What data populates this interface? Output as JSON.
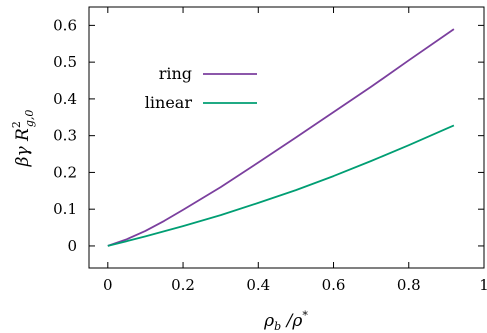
{
  "chart_data": {
    "type": "line",
    "xlabel": "ρ_b / ρ*",
    "ylabel": "β γ R²_{g,0}",
    "xlim": [
      -0.05,
      1.0
    ],
    "ylim": [
      -0.06,
      0.65
    ],
    "xticks": [
      0,
      0.2,
      0.4,
      0.6,
      0.8,
      1
    ],
    "xtick_labels": [
      "0",
      "0.2",
      "0.4",
      "0.6",
      "0.8",
      "1"
    ],
    "yticks": [
      0,
      0.1,
      0.2,
      0.3,
      0.4,
      0.5,
      0.6
    ],
    "ytick_labels": [
      "0",
      "0.1",
      "0.2",
      "0.3",
      "0.4",
      "0.5",
      "0.6"
    ],
    "grid": false,
    "legend_position": "top-left",
    "series": [
      {
        "name": "ring",
        "color": "#7b3f9e",
        "x": [
          0,
          0.05,
          0.1,
          0.15,
          0.2,
          0.3,
          0.4,
          0.5,
          0.6,
          0.7,
          0.8,
          0.92
        ],
        "y": [
          0,
          0.018,
          0.041,
          0.068,
          0.098,
          0.16,
          0.227,
          0.295,
          0.364,
          0.433,
          0.505,
          0.59
        ]
      },
      {
        "name": "linear",
        "color": "#009e73",
        "x": [
          0,
          0.05,
          0.1,
          0.15,
          0.2,
          0.3,
          0.4,
          0.5,
          0.6,
          0.7,
          0.8,
          0.92
        ],
        "y": [
          0,
          0.013,
          0.026,
          0.04,
          0.054,
          0.084,
          0.117,
          0.152,
          0.19,
          0.231,
          0.274,
          0.328
        ]
      }
    ]
  }
}
